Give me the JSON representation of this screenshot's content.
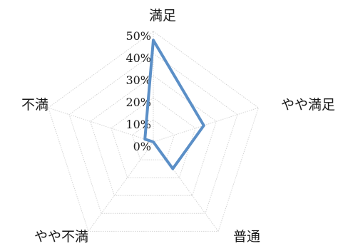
{
  "chart_data": {
    "type": "radar",
    "categories": [
      "満足",
      "やや満足",
      "普通",
      "やや不満",
      "不満"
    ],
    "series": [
      {
        "values": [
          46,
          24,
          15,
          0,
          4
        ]
      }
    ],
    "r_ticks": [
      "0%",
      "10%",
      "20%",
      "30%",
      "40%",
      "50%"
    ],
    "rlim": [
      0,
      50
    ],
    "grid": true,
    "legend": "none",
    "colors": {
      "series": "#5b8fc7",
      "grid": "#d4d4d4"
    }
  }
}
